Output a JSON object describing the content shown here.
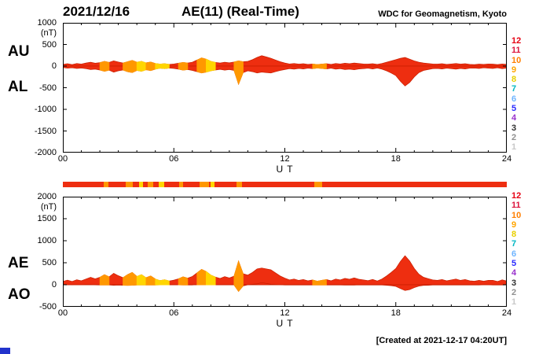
{
  "header": {
    "date": "2021/12/16",
    "title": "AE(11) (Real-Time)",
    "source": "WDC for Geomagnetism, Kyoto"
  },
  "footer": {
    "created": "[Created at 2021-12-17 04:20UT]"
  },
  "axis": {
    "xlabel": "U T",
    "xtick_hours": [
      0,
      6,
      12,
      18,
      24
    ],
    "xtick_labels": [
      "00",
      "06",
      "12",
      "18",
      "24"
    ]
  },
  "panels": [
    {
      "id": "aual",
      "left_labels": [
        "AU",
        "AL"
      ],
      "unit": "(nT)",
      "ylim": [
        -2000,
        1000
      ],
      "yticks": [
        1000,
        500,
        0,
        -500,
        -1000,
        -1500,
        -2000
      ]
    },
    {
      "id": "aeao",
      "left_labels": [
        "AE",
        "AO"
      ],
      "unit": "(nT)",
      "ylim": [
        -500,
        2000
      ],
      "yticks": [
        2000,
        1500,
        1000,
        500,
        0,
        -500
      ]
    }
  ],
  "legend": {
    "station_counts": [
      {
        "label": "12",
        "color": "#e60012"
      },
      {
        "label": "11",
        "color": "#dc143c"
      },
      {
        "label": "10",
        "color": "#ff7f00"
      },
      {
        "label": "9",
        "color": "#ffa500"
      },
      {
        "label": "8",
        "color": "#e8cf00"
      },
      {
        "label": "7",
        "color": "#00b7c3"
      },
      {
        "label": "6",
        "color": "#6eb4ff"
      },
      {
        "label": "5",
        "color": "#2a2aff"
      },
      {
        "label": "4",
        "color": "#9932cc"
      },
      {
        "label": "3",
        "color": "#303030"
      },
      {
        "label": "2",
        "color": "#909090"
      },
      {
        "label": "1",
        "color": "#c8c8c8"
      }
    ]
  },
  "colors": {
    "trace_fill": "#ee2e10",
    "trace_stroke": "#c81e00",
    "bar_base": "#ee2e10",
    "corner_mark": "#2233cc"
  },
  "trace_segments": [
    {
      "start": 2.2,
      "end": 2.45,
      "color": "#ff9800"
    },
    {
      "start": 3.4,
      "end": 3.8,
      "color": "#ff9800"
    },
    {
      "start": 4.1,
      "end": 4.35,
      "color": "#ffd600"
    },
    {
      "start": 4.6,
      "end": 4.9,
      "color": "#ff9800"
    },
    {
      "start": 5.2,
      "end": 5.5,
      "color": "#ffd600"
    },
    {
      "start": 6.3,
      "end": 6.5,
      "color": "#ff9800"
    },
    {
      "start": 7.4,
      "end": 7.9,
      "color": "#ff9800"
    },
    {
      "start": 8.0,
      "end": 8.2,
      "color": "#ffd600"
    },
    {
      "start": 9.4,
      "end": 9.7,
      "color": "#ff9800"
    },
    {
      "start": 13.6,
      "end": 14.0,
      "color": "#ff9800"
    }
  ],
  "chart_data": {
    "type": "area",
    "title": "AE(11) (Real-Time) 2021/12/16",
    "xlabel": "U T",
    "ylabel": "nT",
    "xlim": [
      0,
      24
    ],
    "x_start_hour": 0,
    "x_end_hour": 24,
    "x_step_hour": 0.25,
    "n_points": 97,
    "series": [
      {
        "name": "AU",
        "panel": "aual",
        "ylim": [
          -2000,
          1000
        ],
        "values": [
          40,
          55,
          35,
          60,
          45,
          70,
          90,
          65,
          80,
          110,
          85,
          120,
          95,
          70,
          100,
          130,
          90,
          110,
          75,
          95,
          60,
          45,
          55,
          40,
          50,
          65,
          85,
          70,
          90,
          140,
          190,
          160,
          110,
          85,
          70,
          90,
          75,
          95,
          120,
          100,
          110,
          150,
          200,
          240,
          210,
          180,
          140,
          100,
          70,
          50,
          60,
          45,
          55,
          40,
          50,
          35,
          45,
          55,
          40,
          60,
          50,
          65,
          55,
          70,
          60,
          50,
          45,
          55,
          40,
          60,
          90,
          120,
          150,
          180,
          200,
          160,
          120,
          90,
          70,
          60,
          50,
          45,
          55,
          40,
          50,
          60,
          45,
          55,
          40,
          35,
          45,
          40,
          50,
          45,
          35,
          50,
          40
        ]
      },
      {
        "name": "AL",
        "panel": "aual",
        "ylim": [
          -2000,
          1000
        ],
        "values": [
          -35,
          -50,
          -40,
          -55,
          -45,
          -60,
          -80,
          -70,
          -90,
          -120,
          -95,
          -140,
          -110,
          -90,
          -130,
          -150,
          -100,
          -120,
          -85,
          -105,
          -70,
          -50,
          -60,
          -45,
          -55,
          -70,
          -95,
          -80,
          -100,
          -130,
          -160,
          -140,
          -110,
          -90,
          -75,
          -95,
          -80,
          -100,
          -420,
          -150,
          -110,
          -130,
          -160,
          -140,
          -150,
          -160,
          -130,
          -100,
          -80,
          -60,
          -70,
          -55,
          -65,
          -50,
          -60,
          -45,
          -55,
          -65,
          -50,
          -70,
          -60,
          -80,
          -70,
          -85,
          -65,
          -60,
          -50,
          -65,
          -45,
          -70,
          -110,
          -160,
          -220,
          -350,
          -460,
          -380,
          -250,
          -150,
          -100,
          -80,
          -60,
          -55,
          -65,
          -50,
          -60,
          -70,
          -55,
          -65,
          -50,
          -45,
          -55,
          -40,
          -50,
          -55,
          -40,
          -60,
          -45
        ]
      },
      {
        "name": "AE",
        "panel": "aeao",
        "ylim": [
          -500,
          2000
        ],
        "values": [
          75,
          105,
          75,
          115,
          90,
          130,
          170,
          135,
          170,
          230,
          180,
          260,
          205,
          160,
          230,
          280,
          190,
          230,
          160,
          200,
          130,
          95,
          115,
          85,
          105,
          135,
          180,
          150,
          190,
          270,
          350,
          300,
          220,
          175,
          145,
          185,
          155,
          195,
          540,
          250,
          220,
          280,
          360,
          380,
          360,
          340,
          270,
          200,
          150,
          110,
          130,
          100,
          120,
          90,
          110,
          80,
          100,
          120,
          90,
          130,
          110,
          145,
          125,
          155,
          125,
          110,
          95,
          120,
          85,
          130,
          200,
          280,
          370,
          530,
          660,
          540,
          370,
          240,
          170,
          140,
          110,
          100,
          120,
          90,
          110,
          130,
          100,
          120,
          90,
          80,
          100,
          80,
          100,
          100,
          75,
          110,
          85
        ]
      },
      {
        "name": "AO",
        "panel": "aeao",
        "ylim": [
          -500,
          2000
        ],
        "values": [
          3,
          3,
          -3,
          3,
          0,
          5,
          5,
          -3,
          -5,
          -5,
          -5,
          -10,
          -8,
          -10,
          -15,
          -10,
          -5,
          -5,
          -5,
          -5,
          -5,
          -3,
          -3,
          -3,
          -3,
          -3,
          -5,
          -5,
          -5,
          5,
          15,
          10,
          0,
          -3,
          -3,
          -3,
          -3,
          -3,
          -150,
          -25,
          0,
          10,
          20,
          50,
          30,
          10,
          5,
          0,
          -5,
          -5,
          -5,
          -5,
          -5,
          -5,
          -5,
          -5,
          -5,
          -5,
          -5,
          -5,
          -5,
          -8,
          -8,
          -8,
          -3,
          -5,
          -3,
          -5,
          -3,
          -5,
          -10,
          -20,
          -35,
          -85,
          -130,
          -110,
          -65,
          -30,
          -15,
          -10,
          -5,
          -5,
          -5,
          -5,
          -5,
          -5,
          -5,
          -5,
          -5,
          -5,
          -5,
          0,
          0,
          -5,
          -3,
          -5,
          -3
        ]
      }
    ]
  }
}
